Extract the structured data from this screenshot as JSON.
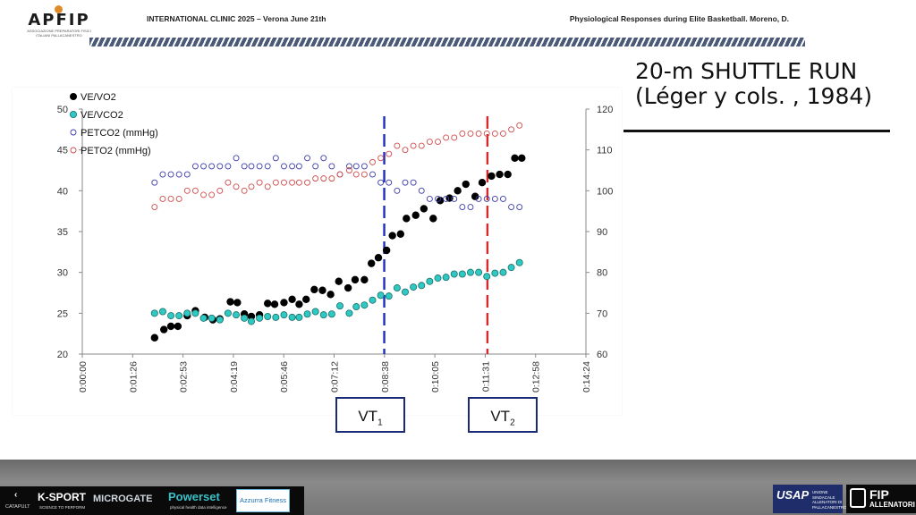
{
  "header": {
    "logo_text": "APFIP",
    "logo_subtext": "ASSOCIAZIONE PREPARATORI FISICI ITALIANI PALLACANESTRO",
    "left": "INTERNATIONAL CLINIC 2025 – Verona June 21th",
    "right": "Physiological Responses during Elite Basketball. Moreno, D."
  },
  "slide": {
    "title_line1": "20-m SHUTTLE RUN",
    "title_line2": "(Léger y cols. , 1984)"
  },
  "colors": {
    "ve_vo2": "#000000",
    "ve_vco2": "#2fc9c3",
    "petco2": "#3a3aa8",
    "peto2": "#d04a4a",
    "vt1": "#1e2fbf",
    "vt2": "#d42a2a"
  },
  "thresholds": [
    {
      "label": "VT",
      "sub": "1",
      "x_seconds": 518,
      "color": "#1e2fbf"
    },
    {
      "label": "VT",
      "sub": "2",
      "x_seconds": 695,
      "color": "#d42a2a"
    }
  ],
  "chart_data": {
    "type": "scatter",
    "title": "",
    "xlabel": "",
    "ylabel_left": "",
    "ylabel_right": "",
    "xlim": [
      0,
      864
    ],
    "ylim_left": [
      20,
      50
    ],
    "ylim_right": [
      60,
      120
    ],
    "x_ticks": [
      "0:00:00",
      "0:01:26",
      "0:02:53",
      "0:04:19",
      "0:05:46",
      "0:07:12",
      "0:08:38",
      "0:10:05",
      "0:11:31",
      "0:12:58",
      "0:14:24"
    ],
    "y_left_ticks": [
      "20",
      "25",
      "30",
      "35",
      "40",
      "45",
      "50"
    ],
    "y_right_ticks": [
      "60",
      "70",
      "80",
      "90",
      "100",
      "110",
      "120"
    ],
    "grid": false,
    "legend_position": "top-left",
    "series": [
      {
        "name": "VE/VO2",
        "axis": "left",
        "marker": "filled",
        "color": "#000000",
        "x": [
          124,
          140,
          152,
          164,
          180,
          194,
          210,
          224,
          236,
          254,
          266,
          278,
          290,
          304,
          318,
          330,
          346,
          360,
          372,
          384,
          398,
          412,
          426,
          440,
          456,
          468,
          484,
          496,
          508,
          522,
          532,
          546,
          556,
          572,
          586,
          602,
          614,
          630,
          644,
          658,
          674,
          686,
          702,
          716,
          730,
          742,
          754
        ],
        "y": [
          22,
          23,
          23.4,
          23.4,
          24.7,
          25.3,
          24.5,
          24.2,
          24.3,
          26.4,
          26.3,
          24.9,
          24.6,
          24.8,
          26.2,
          26.1,
          26.3,
          26.7,
          26.1,
          26.7,
          27.9,
          27.8,
          27.3,
          28.9,
          28.1,
          29.1,
          29.1,
          31.1,
          31.8,
          32.7,
          34.5,
          34.7,
          36.6,
          37,
          37.8,
          36.6,
          38.8,
          39.1,
          40,
          40.8,
          39.3,
          41,
          41.8,
          42,
          42,
          44,
          44
        ]
      },
      {
        "name": "VE/VCO2",
        "axis": "left",
        "marker": "filled",
        "color": "#2fc9c3",
        "x": [
          124,
          138,
          152,
          166,
          180,
          194,
          208,
          222,
          236,
          250,
          264,
          278,
          290,
          304,
          318,
          332,
          346,
          360,
          372,
          386,
          400,
          414,
          428,
          442,
          458,
          470,
          484,
          498,
          512,
          526,
          540,
          554,
          568,
          582,
          596,
          610,
          624,
          638,
          652,
          666,
          680,
          694,
          708,
          722,
          736,
          750
        ],
        "y": [
          25,
          25.2,
          24.7,
          24.7,
          25,
          25,
          24.4,
          24.4,
          24.2,
          25,
          24.8,
          24.4,
          24,
          24.4,
          24.6,
          24.5,
          24.8,
          24.5,
          24.5,
          24.9,
          25.2,
          24.8,
          24.9,
          25.9,
          25,
          25.8,
          26,
          26.6,
          27.2,
          27.1,
          28.1,
          27.6,
          28.2,
          28.4,
          28.9,
          29.3,
          29.4,
          29.8,
          29.8,
          30,
          30,
          29.5,
          29.9,
          30,
          30.6,
          31.2
        ]
      },
      {
        "name": "PETCO2 (mmHg)",
        "axis": "left",
        "marker": "open",
        "color": "#3a3aa8",
        "x": [
          124,
          138,
          152,
          166,
          180,
          194,
          208,
          222,
          236,
          250,
          264,
          278,
          290,
          304,
          318,
          332,
          346,
          360,
          372,
          386,
          400,
          414,
          428,
          442,
          458,
          470,
          484,
          498,
          512,
          526,
          540,
          554,
          568,
          582,
          596,
          610,
          624,
          638,
          652,
          666,
          680,
          694,
          708,
          722,
          736,
          750
        ],
        "y": [
          41,
          42,
          42,
          42,
          42,
          43,
          43,
          43,
          43,
          43,
          44,
          43,
          43,
          43,
          43,
          44,
          43,
          43,
          43,
          44,
          43,
          44,
          43,
          42,
          43,
          43,
          43,
          42,
          41,
          41,
          40,
          41,
          41,
          40,
          39,
          39,
          39,
          39,
          38,
          38,
          39,
          39,
          39,
          39,
          38,
          38
        ]
      },
      {
        "name": "PETO2 (mmHg)",
        "axis": "right",
        "marker": "open",
        "color": "#d04a4a",
        "x": [
          124,
          138,
          152,
          166,
          180,
          194,
          208,
          222,
          236,
          250,
          264,
          278,
          290,
          304,
          318,
          332,
          346,
          360,
          372,
          386,
          400,
          414,
          428,
          442,
          458,
          470,
          484,
          498,
          512,
          526,
          540,
          554,
          568,
          582,
          596,
          610,
          624,
          638,
          652,
          666,
          680,
          694,
          708,
          722,
          736,
          750
        ],
        "y": [
          96,
          98,
          98,
          98,
          100,
          100,
          99,
          99,
          100,
          102,
          101,
          100,
          101,
          102,
          101,
          102,
          102,
          102,
          102,
          102,
          103,
          103,
          103,
          104,
          105,
          104,
          104,
          107,
          108,
          109,
          111,
          110,
          111,
          111,
          112,
          112,
          113,
          113,
          114,
          114,
          114,
          114,
          114,
          114,
          115,
          116
        ]
      }
    ]
  },
  "sponsors": {
    "catapult": "CATAPULT",
    "ksport": "K-SPORT",
    "ksport_tag": "SCIENCE TO PERFORM",
    "microgate": "MICROGATE",
    "powerset": "Powerset",
    "powerset_tag": "physical health data intelligence",
    "azzurra": "Azzurra Fitness",
    "usap": "USAP",
    "usap_sub": "UNIONE SINDACALE ALLENATORI DI PALLACANESTRO",
    "fip": "FIP",
    "fip_sub": "ALLENATORI"
  }
}
